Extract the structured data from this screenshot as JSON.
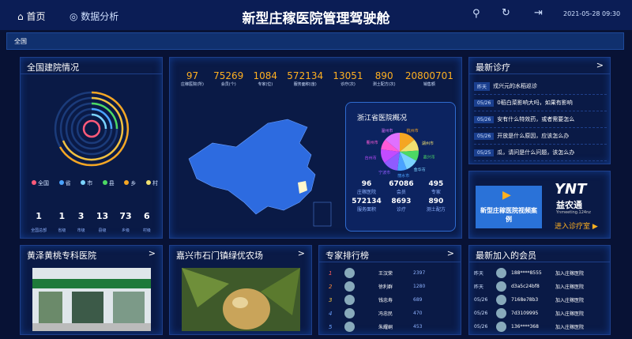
{
  "header": {
    "home": "首页",
    "analysis": "数据分析",
    "title": "新型庄稼医院管理驾驶舱",
    "datetime": "2021-05-28 09:30"
  },
  "breadcrumb": "全国",
  "national": {
    "title": "全国建院情况",
    "legend": [
      "全国",
      "省",
      "市",
      "县",
      "乡",
      "村"
    ],
    "values": [
      1,
      1,
      3,
      13,
      73,
      6
    ],
    "labels": [
      "全国总部",
      "省级",
      "市级",
      "县级",
      "乡级",
      "村级"
    ]
  },
  "kpis": {
    "values": [
      97,
      75269,
      1084,
      572134,
      13051,
      890,
      20800701
    ],
    "labels": [
      "庄稼医院(所)",
      "会员(个)",
      "专家(位)",
      "服务面积(亩)",
      "诊疗(次)",
      "测土配方(次)",
      "销售额"
    ]
  },
  "zhejiang": {
    "title": "浙江省医院概况",
    "cities": [
      "杭州市",
      "湖州市",
      "嘉兴市",
      "金华市",
      "丽水市",
      "宁波市",
      "台州市",
      "衢州市",
      "温州市"
    ],
    "shares": [
      14,
      10,
      9,
      11,
      8,
      13,
      12,
      9,
      14
    ],
    "stats": [
      {
        "value": "96",
        "label": "庄稼医院"
      },
      {
        "value": "67086",
        "label": "会员"
      },
      {
        "value": "495",
        "label": "专家"
      },
      {
        "value": "572134",
        "label": "服务面积"
      },
      {
        "value": "8693",
        "label": "诊疗"
      },
      {
        "value": "890",
        "label": "测土配方"
      }
    ]
  },
  "diagnosis": {
    "title": "最新诊疗",
    "more": ">",
    "items": [
      {
        "date": "昨天",
        "text": "戎兴元的水稻巡诊"
      },
      {
        "date": "05/26",
        "text": "0稻白菜影响大吗，如果有影响"
      },
      {
        "date": "05/26",
        "text": "安有什么特效药，或者需要怎么"
      },
      {
        "date": "05/26",
        "text": "开放是什么原因，应该怎么办"
      },
      {
        "date": "05/25",
        "text": "瓜，请问是什么问题，该怎么办"
      }
    ]
  },
  "ad": {
    "video": "新型庄稼医院视频案例",
    "brand": "YNT",
    "brand_cn": "益农通",
    "site": "Ynmeeting.124nz",
    "enter": "进入诊疗室 ▶"
  },
  "hospital1": {
    "title": "黄泽黄桃专科医院",
    "more": ">"
  },
  "hospital2": {
    "title": "嘉兴市石门镇绿优农场",
    "more": ">"
  },
  "experts": {
    "title": "专家排行榜",
    "more": ">",
    "rows": [
      {
        "rank": "1",
        "name": "王汉荣",
        "score": "2397"
      },
      {
        "rank": "2",
        "name": "徐利群",
        "score": "1280"
      },
      {
        "rank": "3",
        "name": "钱忠寿",
        "score": "689"
      },
      {
        "rank": "4",
        "name": "冯忠民",
        "score": "470"
      },
      {
        "rank": "5",
        "name": "朱耀峒",
        "score": "453"
      }
    ]
  },
  "members": {
    "title": "最新加入的会员",
    "rows": [
      {
        "date": "昨天",
        "id": "188****8555",
        "action": "加入庄稼医院"
      },
      {
        "date": "昨天",
        "id": "d3a5c24bf8",
        "action": "加入庄稼医院"
      },
      {
        "date": "05/26",
        "id": "7168e78b3",
        "action": "加入庄稼医院"
      },
      {
        "date": "05/26",
        "id": "7d3109995",
        "action": "加入庄稼医院"
      },
      {
        "date": "05/26",
        "id": "136****368",
        "action": "加入庄稼医院"
      }
    ]
  }
}
